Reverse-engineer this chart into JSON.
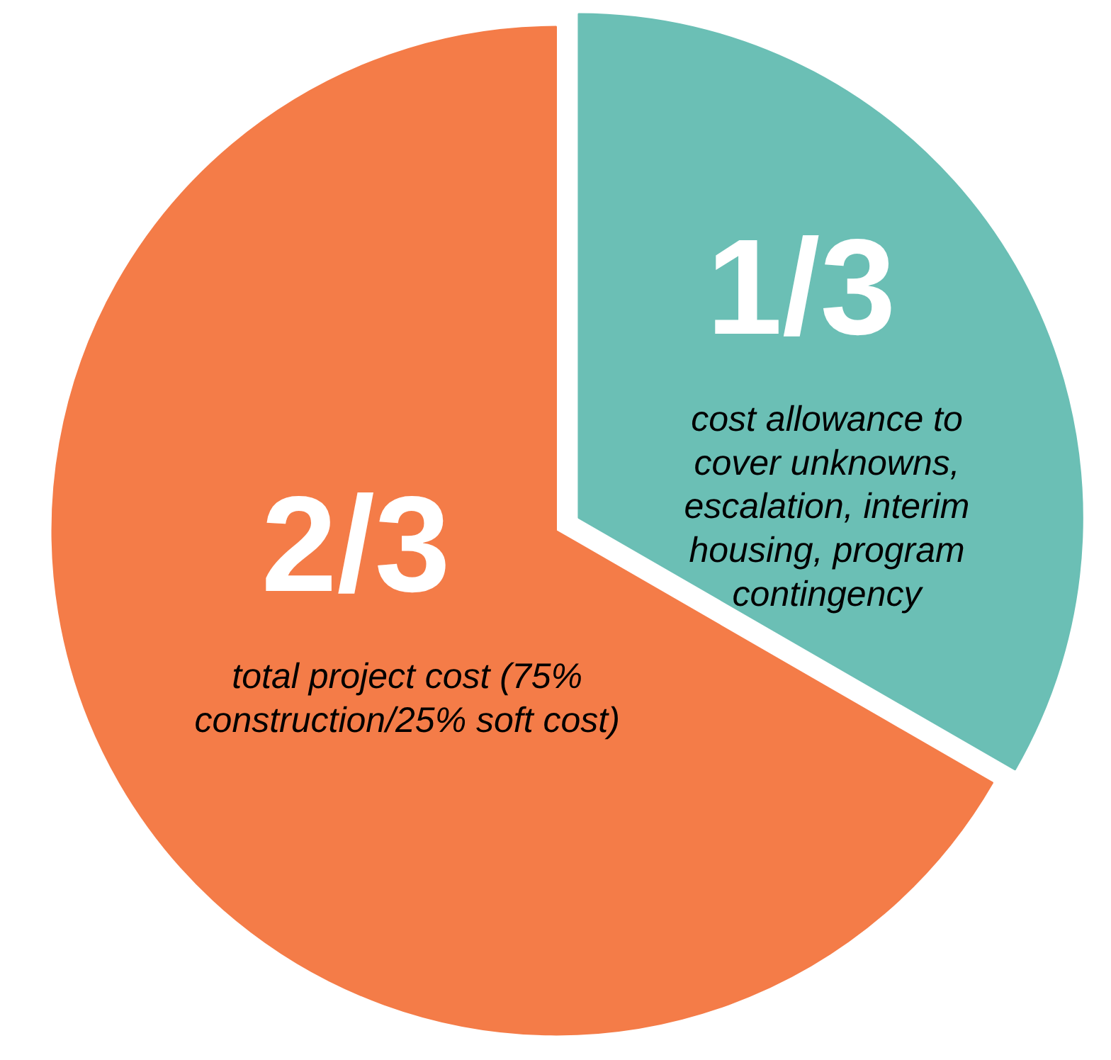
{
  "chart_data": {
    "type": "pie",
    "categories": [
      "cost allowance to cover unknowns, escalation, interim housing, program contingency",
      "total project cost (75% construction/25% soft cost)"
    ],
    "values": [
      0.3333,
      0.6667
    ],
    "colors": [
      "#6bbfb5",
      "#f47c48"
    ],
    "value_labels": [
      "1/3",
      "2/3"
    ]
  }
}
